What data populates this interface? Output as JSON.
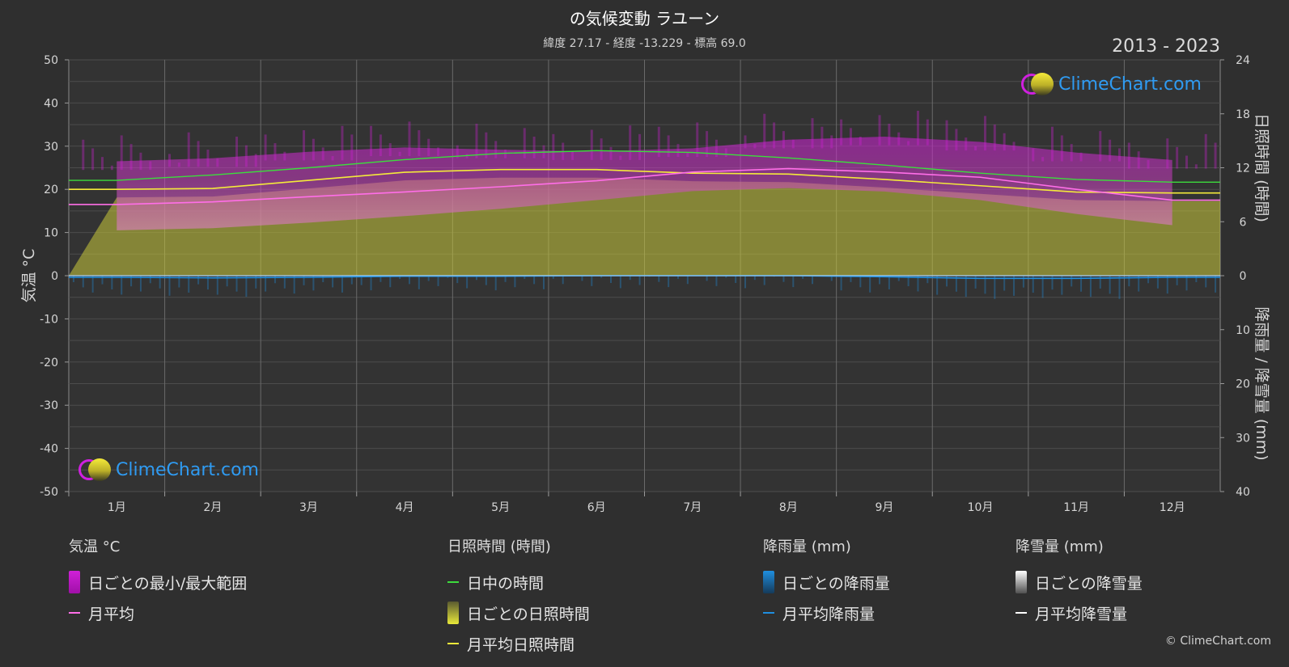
{
  "title": "の気候変動 ラユーン",
  "subtitle": "緯度 27.17 - 経度 -13.229 - 標高 69.0",
  "years": "2013 - 2023",
  "logo_text": "ClimeChart.com",
  "copyright": "© ClimeChart.com",
  "colors": {
    "background": "#2f2f2f",
    "temp_range": "#d020d8",
    "temp_mean": "#ff6ee8",
    "daylight": "#3ddc3d",
    "sunshine": "#c8c83a",
    "sunshine_mean": "#f4ea3a",
    "rain": "#1f8fe0",
    "snow": "#ffffff"
  },
  "chart_data": {
    "type": "line",
    "categories": [
      "1月",
      "2月",
      "3月",
      "4月",
      "5月",
      "6月",
      "7月",
      "8月",
      "9月",
      "10月",
      "11月",
      "12月"
    ],
    "left_axis": {
      "label": "気温 °C",
      "ticks": [
        50,
        40,
        30,
        20,
        10,
        0,
        -10,
        -20,
        -30,
        -40,
        -50
      ],
      "range": [
        -50,
        50
      ]
    },
    "right_axis_top": {
      "label": "日照時間 (時間)",
      "ticks": [
        24,
        18,
        12,
        6,
        0
      ],
      "range": [
        0,
        24
      ]
    },
    "right_axis_bottom": {
      "label": "降雨量 / 降雪量 (mm)",
      "ticks": [
        0,
        10,
        20,
        30,
        40
      ],
      "range": [
        0,
        40
      ]
    },
    "series": [
      {
        "name": "日中の時間",
        "unit": "時間",
        "values": [
          10.6,
          11.2,
          12.0,
          12.9,
          13.6,
          13.9,
          13.7,
          13.1,
          12.3,
          11.4,
          10.7,
          10.4
        ]
      },
      {
        "name": "月平均日照時間",
        "unit": "時間",
        "values": [
          9.6,
          9.7,
          10.6,
          11.5,
          11.8,
          11.8,
          11.4,
          11.3,
          10.7,
          10.0,
          9.3,
          9.2
        ]
      },
      {
        "name": "月平均",
        "unit": "°C",
        "values": [
          16.5,
          17.1,
          18.3,
          19.4,
          20.6,
          22.0,
          24.0,
          24.8,
          24.0,
          22.8,
          20.0,
          17.5
        ]
      },
      {
        "name": "日ごとの最小/最大範囲",
        "unit": "°C",
        "min": [
          10.5,
          11.0,
          12.3,
          13.8,
          15.5,
          17.5,
          19.6,
          20.3,
          19.5,
          17.5,
          14.3,
          11.7
        ],
        "max": [
          26.5,
          27.2,
          28.7,
          29.7,
          29.2,
          28.8,
          29.5,
          31.5,
          32.2,
          31.0,
          28.5,
          26.8
        ]
      },
      {
        "name": "月平均降雨量",
        "unit": "mm",
        "values": [
          0.3,
          0.4,
          0.3,
          0.1,
          0.1,
          0.0,
          0.0,
          0.0,
          0.2,
          0.5,
          0.5,
          0.3
        ]
      },
      {
        "name": "月平均降雪量",
        "unit": "mm",
        "values": [
          0,
          0,
          0,
          0,
          0,
          0,
          0,
          0,
          0,
          0,
          0,
          0
        ]
      }
    ],
    "grid": true
  },
  "legend": {
    "temp": {
      "heading": "気温 °C",
      "range_label": "日ごとの最小/最大範囲",
      "mean_label": "月平均"
    },
    "sun": {
      "heading": "日照時間 (時間)",
      "daylight_label": "日中の時間",
      "daily_label": "日ごとの日照時間",
      "mean_label": "月平均日照時間"
    },
    "rain": {
      "heading": "降雨量 (mm)",
      "daily_label": "日ごとの降雨量",
      "mean_label": "月平均降雨量"
    },
    "snow": {
      "heading": "降雪量 (mm)",
      "daily_label": "日ごとの降雪量",
      "mean_label": "月平均降雪量"
    }
  }
}
